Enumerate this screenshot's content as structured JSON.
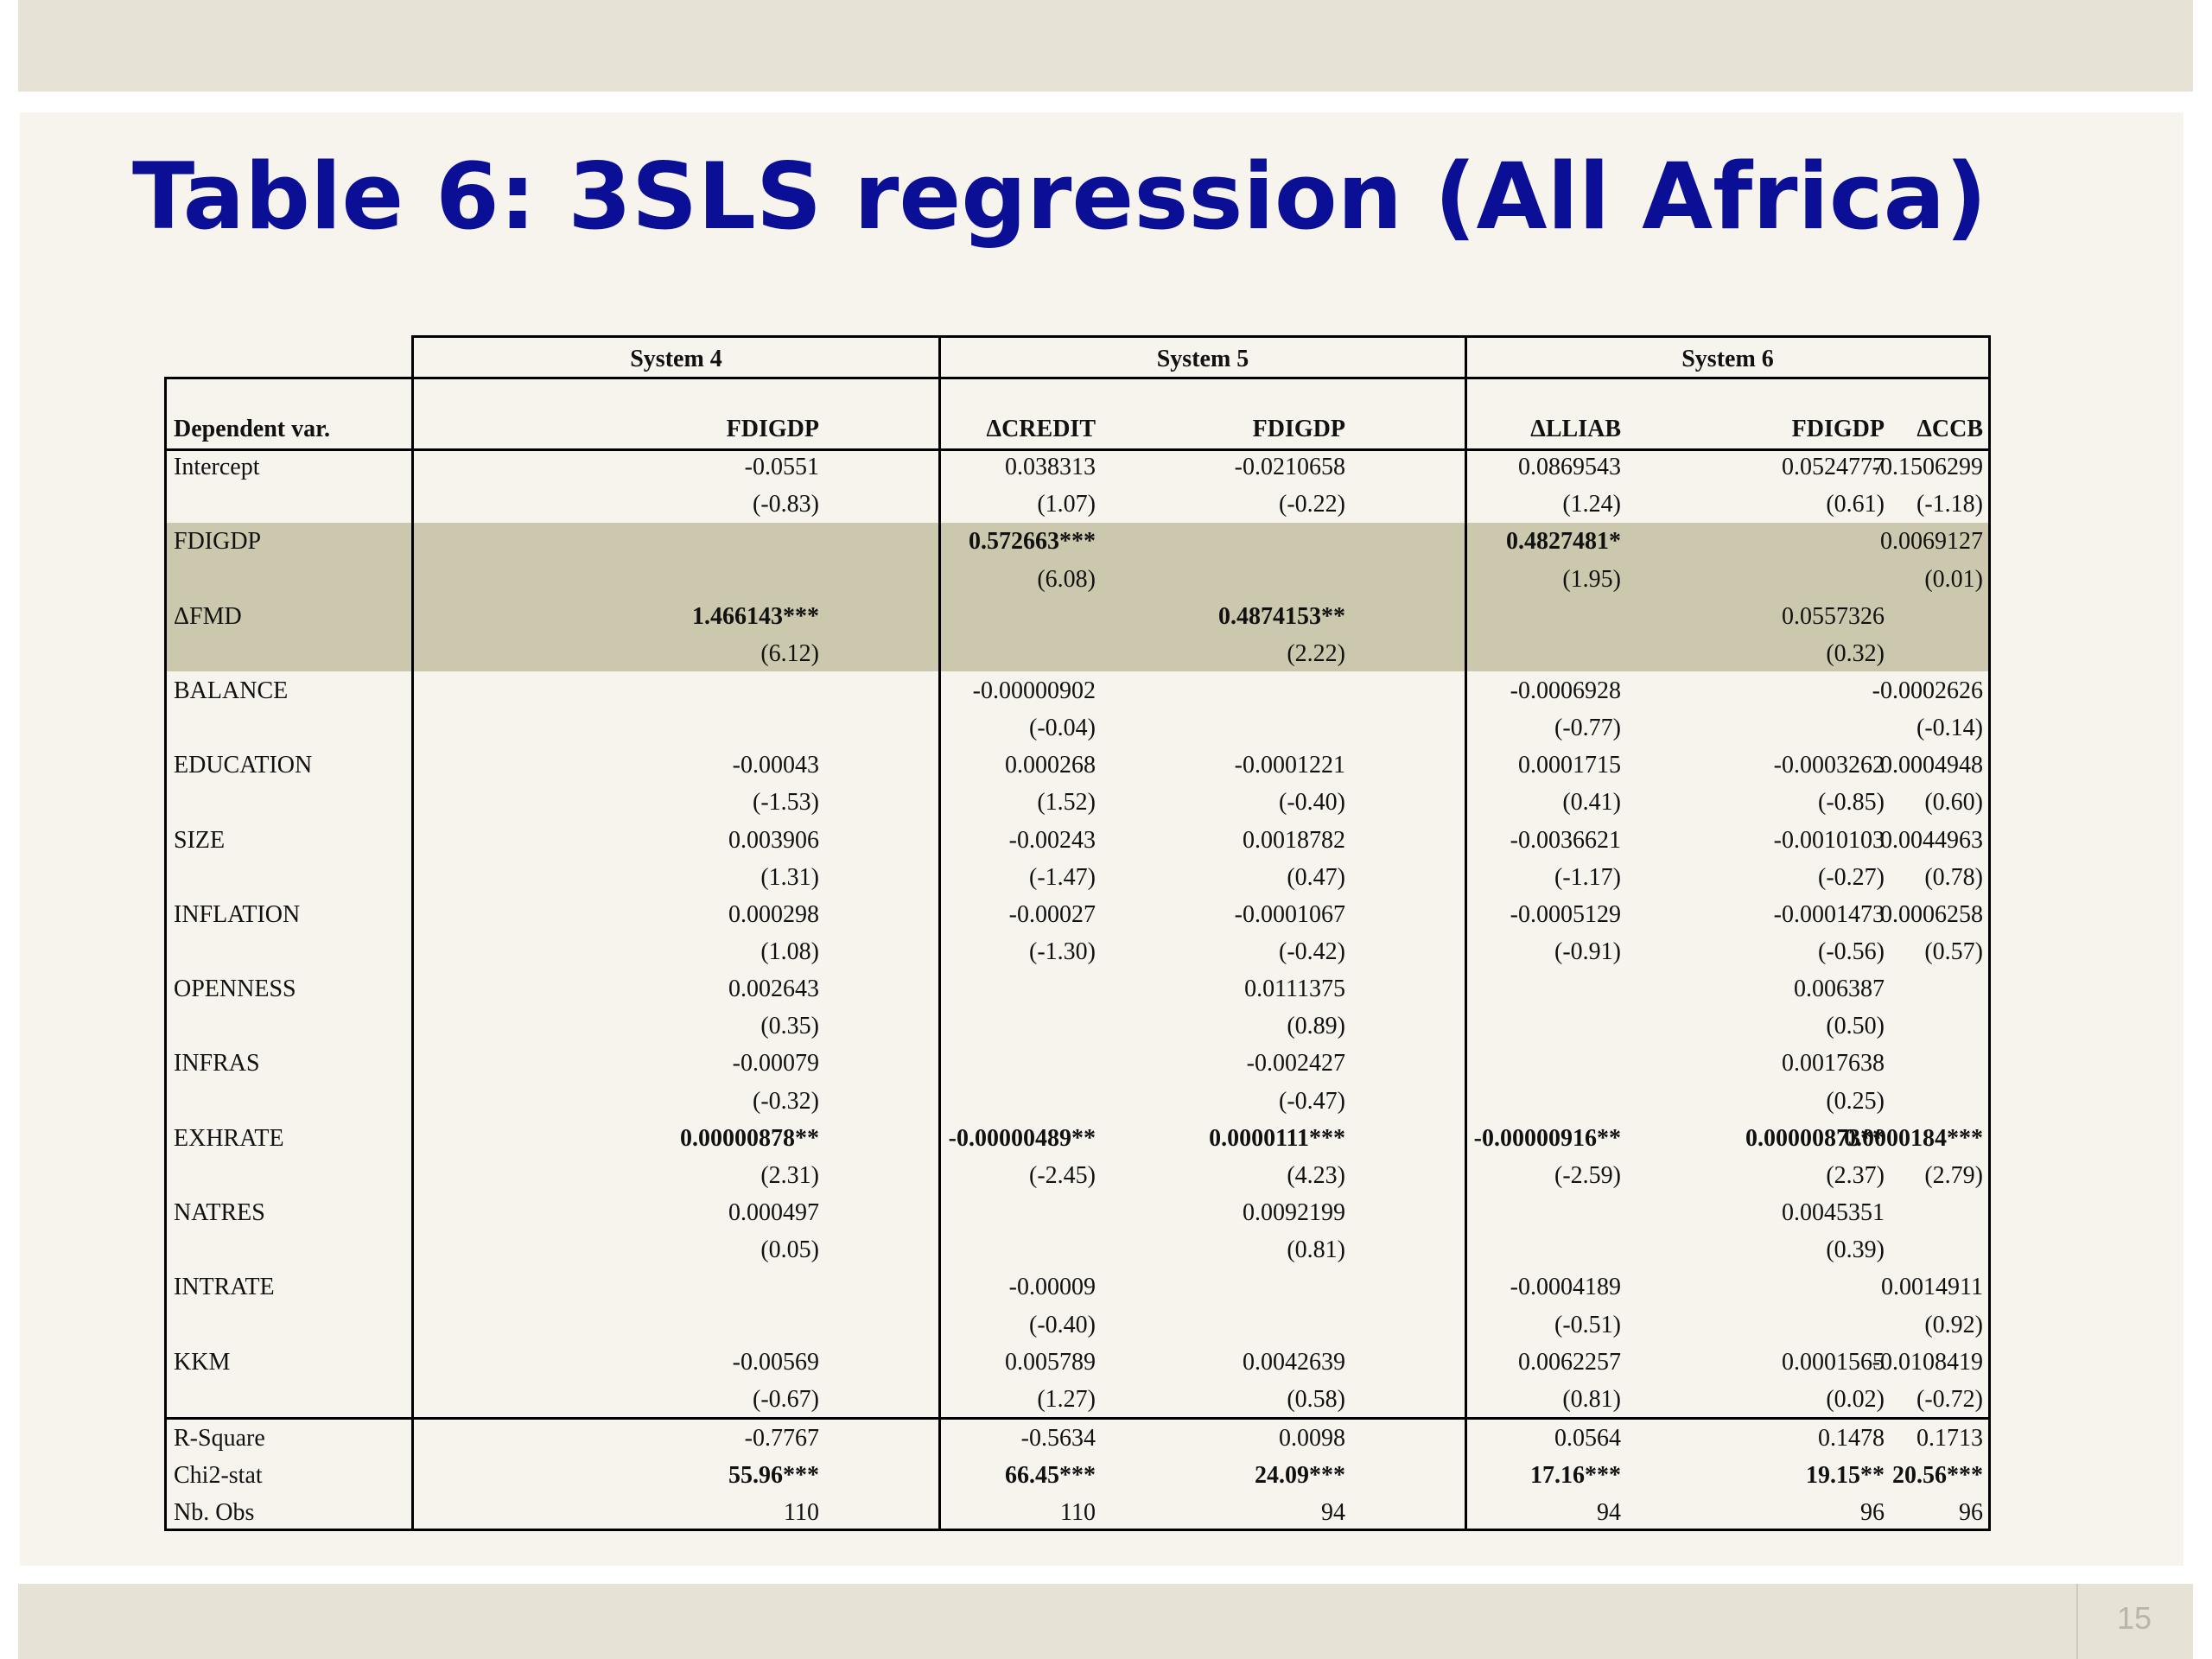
{
  "title": "Table 6: 3SLS regression (All Africa)",
  "page_number": "15",
  "colors": {
    "title": "#0b0f96",
    "band_bg": "#e6e2d5",
    "slide_bg": "#f7f4ed",
    "highlight": "#ccc8ae"
  },
  "table": {
    "systems": [
      "System 4",
      "System 5",
      "System 6"
    ],
    "header_label": "Dependent var.",
    "columns": [
      "FDIGDP",
      "ΔCREDIT",
      "FDIGDP",
      "ΔLLIAB",
      "FDIGDP",
      "ΔCCB"
    ],
    "rows": [
      {
        "label": "Intercept",
        "coef": [
          "-0.0551",
          "0.038313",
          "-0.0210658",
          "0.0869543",
          "0.0524777",
          "-0.1506299"
        ],
        "t": [
          "(-0.83)",
          "(1.07)",
          "(-0.22)",
          "(1.24)",
          "(0.61)",
          "(-1.18)"
        ]
      },
      {
        "label": "FDIGDP",
        "coef": [
          "",
          "0.572663***",
          "",
          "0.4827481*",
          "",
          "0.0069127"
        ],
        "t": [
          "",
          "(6.08)",
          "",
          "(1.95)",
          "",
          "(0.01)"
        ]
      },
      {
        "label": "ΔFMD",
        "coef": [
          "1.466143***",
          "",
          "0.4874153**",
          "",
          "0.0557326",
          ""
        ],
        "t": [
          "(6.12)",
          "",
          "(2.22)",
          "",
          "(0.32)",
          ""
        ]
      },
      {
        "label": "BALANCE",
        "coef": [
          "",
          "-0.00000902",
          "",
          "-0.0006928",
          "",
          "-0.0002626"
        ],
        "t": [
          "",
          "(-0.04)",
          "",
          "(-0.77)",
          "",
          "(-0.14)"
        ]
      },
      {
        "label": "EDUCATION",
        "coef": [
          "-0.00043",
          "0.000268",
          "-0.0001221",
          "0.0001715",
          "-0.0003262",
          "0.0004948"
        ],
        "t": [
          "(-1.53)",
          "(1.52)",
          "(-0.40)",
          "(0.41)",
          "(-0.85)",
          "(0.60)"
        ]
      },
      {
        "label": "SIZE",
        "coef": [
          "0.003906",
          "-0.00243",
          "0.0018782",
          "-0.0036621",
          "-0.0010103",
          "0.0044963"
        ],
        "t": [
          "(1.31)",
          "(-1.47)",
          "(0.47)",
          "(-1.17)",
          "(-0.27)",
          "(0.78)"
        ]
      },
      {
        "label": "INFLATION",
        "coef": [
          "0.000298",
          "-0.00027",
          "-0.0001067",
          "-0.0005129",
          "-0.0001473",
          "0.0006258"
        ],
        "t": [
          "(1.08)",
          "(-1.30)",
          "(-0.42)",
          "(-0.91)",
          "(-0.56)",
          "(0.57)"
        ]
      },
      {
        "label": "OPENNESS",
        "coef": [
          "0.002643",
          "",
          "0.0111375",
          "",
          "0.006387",
          ""
        ],
        "t": [
          "(0.35)",
          "",
          "(0.89)",
          "",
          "(0.50)",
          ""
        ]
      },
      {
        "label": "INFRAS",
        "coef": [
          "-0.00079",
          "",
          "-0.002427",
          "",
          "0.0017638",
          ""
        ],
        "t": [
          "(-0.32)",
          "",
          "(-0.47)",
          "",
          "(0.25)",
          ""
        ]
      },
      {
        "label": "EXHRATE",
        "coef": [
          "0.00000878**",
          "-0.00000489**",
          "0.0000111***",
          "-0.00000916**",
          "0.00000873**",
          "0.0000184***"
        ],
        "t": [
          "(2.31)",
          "(-2.45)",
          "(4.23)",
          "(-2.59)",
          "(2.37)",
          "(2.79)"
        ]
      },
      {
        "label": "NATRES",
        "coef": [
          "0.000497",
          "",
          "0.0092199",
          "",
          "0.0045351",
          ""
        ],
        "t": [
          "(0.05)",
          "",
          "(0.81)",
          "",
          "(0.39)",
          ""
        ]
      },
      {
        "label": "INTRATE",
        "coef": [
          "",
          "-0.00009",
          "",
          "-0.0004189",
          "",
          "0.0014911"
        ],
        "t": [
          "",
          "(-0.40)",
          "",
          "(-0.51)",
          "",
          "(0.92)"
        ]
      },
      {
        "label": "KKM",
        "coef": [
          "-0.00569",
          "0.005789",
          "0.0042639",
          "0.0062257",
          "0.0001565",
          "-0.0108419"
        ],
        "t": [
          "(-0.67)",
          "(1.27)",
          "(0.58)",
          "(0.81)",
          "(0.02)",
          "(-0.72)"
        ]
      }
    ],
    "stats": [
      {
        "label": "R-Square",
        "values": [
          "-0.7767",
          "-0.5634",
          "0.0098",
          "0.0564",
          "0.1478",
          "0.1713"
        ]
      },
      {
        "label": "Chi2-stat",
        "values": [
          "55.96***",
          "66.45***",
          "24.09***",
          "17.16***",
          "19.15**",
          "20.56***"
        ]
      },
      {
        "label": "Nb. Obs",
        "values": [
          "110",
          "110",
          "94",
          "94",
          "96",
          "96"
        ]
      }
    ]
  }
}
